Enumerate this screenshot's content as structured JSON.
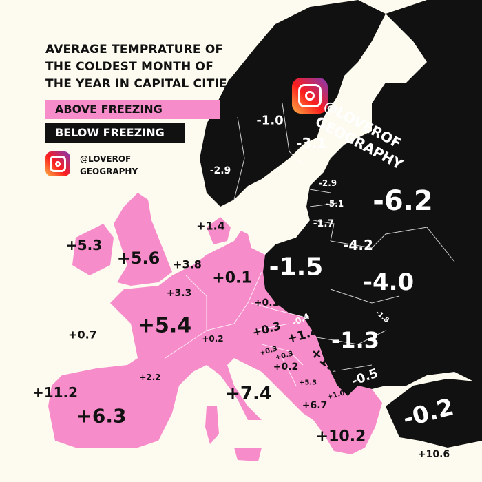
{
  "title_lines": [
    "AVERAGE TEMPRATURE OF",
    "THE COLDEST MONTH OF",
    "THE YEAR IN CAPITAL CITIES"
  ],
  "legend": {
    "above": "ABOVE FREEZING",
    "below": "BELOW FREEZING"
  },
  "handle": {
    "line1": "@LOVEROF",
    "line2": "GEOGRAPHY"
  },
  "icons": {
    "logo": "instagram-icon"
  },
  "colors": {
    "above_freezing": "#f78ccb",
    "below_freezing": "#111111",
    "sea": "#fdfbef"
  },
  "labels": [
    {
      "value": "-1.0",
      "category": "below"
    },
    {
      "value": "-3.1",
      "category": "below"
    },
    {
      "value": "-2.9",
      "category": "below"
    },
    {
      "value": "-2.9",
      "category": "below"
    },
    {
      "value": "-5.1",
      "category": "below"
    },
    {
      "value": "-1.7",
      "category": "below"
    },
    {
      "value": "-6.2",
      "category": "below"
    },
    {
      "value": "-4.2",
      "category": "below"
    },
    {
      "value": "-1.5",
      "category": "below"
    },
    {
      "value": "-4.0",
      "category": "below"
    },
    {
      "value": "-1.8",
      "category": "below"
    },
    {
      "value": "-0.4",
      "category": "below"
    },
    {
      "value": "-1.3",
      "category": "below"
    },
    {
      "value": "-0.5",
      "category": "below"
    },
    {
      "value": "-0.2",
      "category": "below"
    },
    {
      "value": "+1.4",
      "category": "above"
    },
    {
      "value": "+5.3",
      "category": "above"
    },
    {
      "value": "+5.6",
      "category": "above"
    },
    {
      "value": "+3.8",
      "category": "above"
    },
    {
      "value": "+0.1",
      "category": "above"
    },
    {
      "value": "+3.3",
      "category": "above"
    },
    {
      "value": "+0.1",
      "category": "above"
    },
    {
      "value": "+5.4",
      "category": "above"
    },
    {
      "value": "+0.3",
      "category": "above"
    },
    {
      "value": "+1.4",
      "category": "above"
    },
    {
      "value": "+0.7",
      "category": "above"
    },
    {
      "value": "+0.2",
      "category": "above"
    },
    {
      "value": "+0.3",
      "category": "above"
    },
    {
      "value": "+0.3",
      "category": "above"
    },
    {
      "value": "+1.9",
      "category": "above"
    },
    {
      "value": "+0.2",
      "category": "above"
    },
    {
      "value": "+5.3",
      "category": "above"
    },
    {
      "value": "+1.0",
      "category": "above"
    },
    {
      "value": "+2.2",
      "category": "above"
    },
    {
      "value": "+11.2",
      "category": "above"
    },
    {
      "value": "+6.3",
      "category": "above"
    },
    {
      "value": "+7.4",
      "category": "above"
    },
    {
      "value": "+6.7",
      "category": "above"
    },
    {
      "value": "+10.2",
      "category": "above"
    },
    {
      "value": "+10.6",
      "category": "above"
    }
  ]
}
